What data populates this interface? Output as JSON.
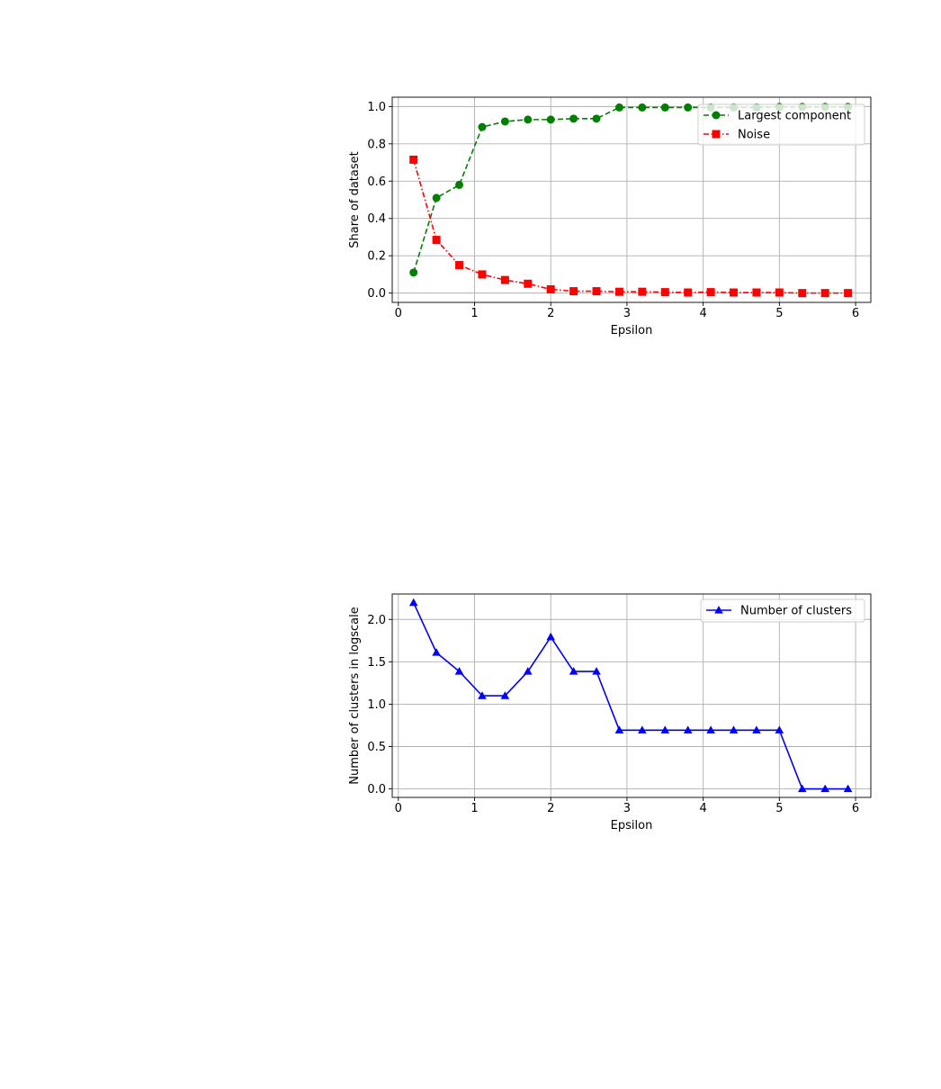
{
  "chart_data": [
    {
      "type": "line",
      "xlabel": "Epsilon",
      "ylabel": "Share of dataset",
      "xlim": [
        -0.08,
        6.2
      ],
      "ylim": [
        -0.05,
        1.05
      ],
      "xticks": [
        "0",
        "1",
        "2",
        "3",
        "4",
        "5",
        "6"
      ],
      "yticks": [
        "0.0",
        "0.2",
        "0.4",
        "0.6",
        "0.8",
        "1.0"
      ],
      "grid": true,
      "legend_position": "top-right",
      "x": [
        0.2,
        0.5,
        0.8,
        1.1,
        1.4,
        1.7,
        2.0,
        2.3,
        2.6,
        2.9,
        3.2,
        3.5,
        3.8,
        4.1,
        4.4,
        4.7,
        5.0,
        5.3,
        5.6,
        5.9
      ],
      "series": [
        {
          "name": "Largest component",
          "color": "#008000",
          "line_style": "dashed",
          "marker": "circle",
          "values": [
            0.11,
            0.51,
            0.58,
            0.89,
            0.92,
            0.93,
            0.93,
            0.935,
            0.935,
            0.995,
            0.995,
            0.995,
            0.995,
            0.995,
            0.995,
            0.995,
            0.998,
            0.998,
            0.998,
            0.998
          ]
        },
        {
          "name": "Noise",
          "color": "#ff0000",
          "line_style": "dashdot",
          "marker": "square",
          "values": [
            0.715,
            0.285,
            0.15,
            0.1,
            0.07,
            0.05,
            0.02,
            0.01,
            0.01,
            0.007,
            0.007,
            0.005,
            0.003,
            0.005,
            0.003,
            0.003,
            0.003,
            0.0,
            0.0,
            0.0
          ]
        }
      ]
    },
    {
      "type": "line",
      "xlabel": "Epsilon",
      "ylabel": "Number of clusters in logscale",
      "xlim": [
        -0.08,
        6.2
      ],
      "ylim": [
        -0.1,
        2.3
      ],
      "xticks": [
        "0",
        "1",
        "2",
        "3",
        "4",
        "5",
        "6"
      ],
      "yticks": [
        "0.0",
        "0.5",
        "1.0",
        "1.5",
        "2.0"
      ],
      "grid": true,
      "legend_position": "top-right",
      "x": [
        0.2,
        0.5,
        0.8,
        1.1,
        1.4,
        1.7,
        2.0,
        2.3,
        2.6,
        2.9,
        3.2,
        3.5,
        3.8,
        4.1,
        4.4,
        4.7,
        5.0,
        5.3,
        5.6,
        5.9
      ],
      "series": [
        {
          "name": "Number of clusters",
          "color": "#0000ff",
          "line_style": "solid",
          "marker": "triangle",
          "values": [
            2.197,
            1.609,
            1.386,
            1.099,
            1.099,
            1.386,
            1.792,
            1.386,
            1.386,
            0.693,
            0.693,
            0.693,
            0.693,
            0.693,
            0.693,
            0.693,
            0.693,
            0.0,
            0.0,
            0.0
          ]
        }
      ]
    }
  ]
}
